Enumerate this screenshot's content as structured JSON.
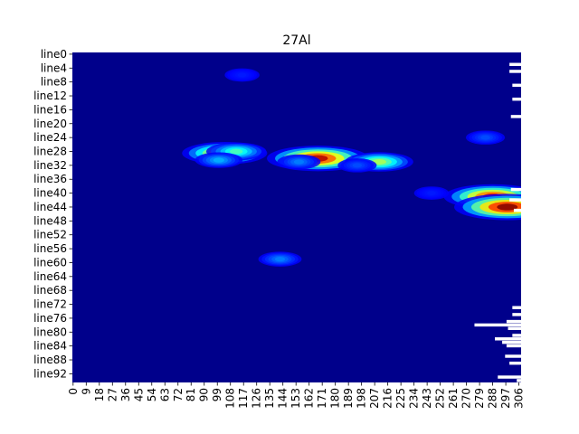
{
  "chart_data": {
    "type": "heatmap",
    "title": "27Al",
    "xlabel": "",
    "ylabel": "",
    "x_tick_labels": [
      "0",
      "9",
      "18",
      "27",
      "36",
      "45",
      "54",
      "63",
      "72",
      "81",
      "90",
      "99",
      "108",
      "117",
      "126",
      "135",
      "144",
      "153",
      "162",
      "171",
      "180",
      "189",
      "198",
      "207",
      "216",
      "225",
      "234",
      "243",
      "252",
      "261",
      "270",
      "279",
      "288",
      "297",
      "306"
    ],
    "x_tick_values": [
      0,
      9,
      18,
      27,
      36,
      45,
      54,
      63,
      72,
      81,
      90,
      99,
      108,
      117,
      126,
      135,
      144,
      153,
      162,
      171,
      180,
      189,
      198,
      207,
      216,
      225,
      234,
      243,
      252,
      261,
      270,
      279,
      288,
      297,
      306
    ],
    "y_tick_labels": [
      "line0",
      "line4",
      "line8",
      "line12",
      "line16",
      "line20",
      "line24",
      "line28",
      "line32",
      "line36",
      "line40",
      "line44",
      "line48",
      "line52",
      "line56",
      "line60",
      "line64",
      "line68",
      "line72",
      "line76",
      "line80",
      "line84",
      "line88",
      "line92"
    ],
    "y_tick_values": [
      0,
      4,
      8,
      12,
      16,
      20,
      24,
      28,
      32,
      36,
      40,
      44,
      48,
      52,
      56,
      60,
      64,
      68,
      72,
      76,
      80,
      84,
      88,
      92
    ],
    "n_cols": 308,
    "n_rows": 95,
    "colormap": "jet",
    "background_color": "#00008b",
    "grid": false,
    "legend": "none",
    "hotspots": [
      {
        "x": 104,
        "y": 28.5,
        "intensity": 0.75
      },
      {
        "x": 112,
        "y": 28,
        "intensity": 0.45
      },
      {
        "x": 100,
        "y": 30.5,
        "intensity": 0.3
      },
      {
        "x": 168,
        "y": 30,
        "intensity": 0.95
      },
      {
        "x": 210,
        "y": 31,
        "intensity": 0.55
      },
      {
        "x": 288,
        "y": 41,
        "intensity": 0.9
      },
      {
        "x": 298,
        "y": 44,
        "intensity": 1.0
      },
      {
        "x": 142,
        "y": 59,
        "intensity": 0.25
      },
      {
        "x": 283,
        "y": 24,
        "intensity": 0.2
      },
      {
        "x": 116,
        "y": 6,
        "intensity": 0.15
      },
      {
        "x": 246,
        "y": 40,
        "intensity": 0.15
      },
      {
        "x": 195,
        "y": 32,
        "intensity": 0.2
      },
      {
        "x": 155,
        "y": 31,
        "intensity": 0.25
      }
    ]
  }
}
